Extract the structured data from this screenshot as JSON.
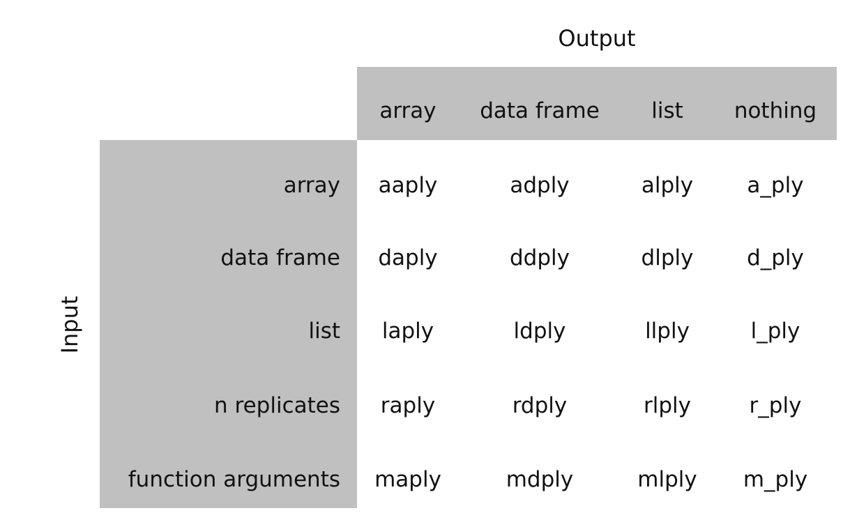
{
  "output_label": "Output",
  "input_label": "Input",
  "columns": [
    "array",
    "data frame",
    "list",
    "nothing"
  ],
  "rows": [
    {
      "label": "array",
      "cells": [
        "aaply",
        "adply",
        "alply",
        "a_ply"
      ]
    },
    {
      "label": "data frame",
      "cells": [
        "daply",
        "ddply",
        "dlply",
        "d_ply"
      ]
    },
    {
      "label": "list",
      "cells": [
        "laply",
        "ldply",
        "llply",
        "l_ply"
      ]
    },
    {
      "label": "n replicates",
      "cells": [
        "raply",
        "rdply",
        "rlply",
        "r_ply"
      ]
    },
    {
      "label": "function arguments",
      "cells": [
        "maply",
        "mdply",
        "mlply",
        "m_ply"
      ]
    }
  ],
  "colors": {
    "header_fill": "#c0c0c0",
    "text": "#111111",
    "background": "#ffffff"
  }
}
